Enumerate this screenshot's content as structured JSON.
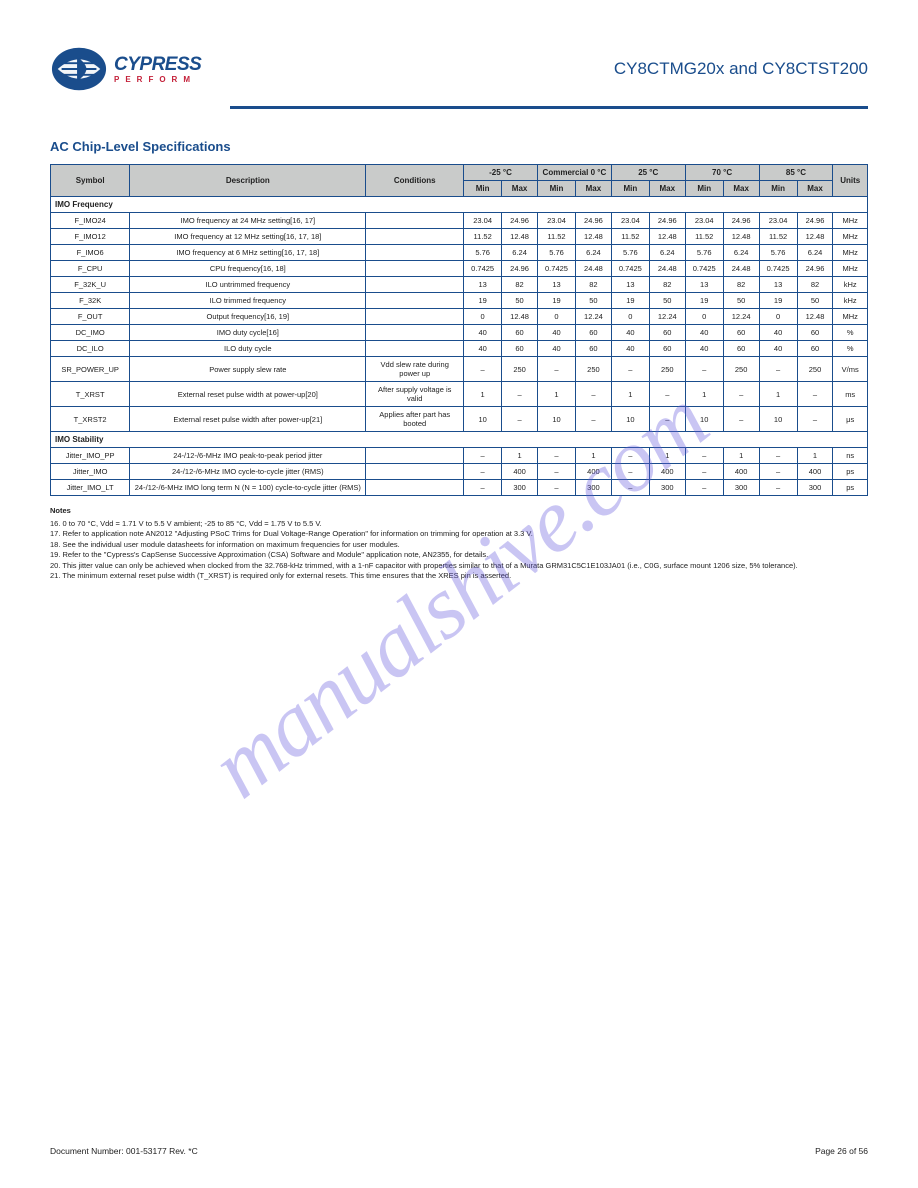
{
  "header": {
    "logo_main": "CYPRESS",
    "logo_sub": "PERFORM",
    "doc_title": "CY8CTMG20x and CY8CTST200"
  },
  "section_title": "AC Chip-Level Specifications",
  "table": {
    "headers": {
      "symbol": "Symbol",
      "description": "Description",
      "conditions": "Conditions",
      "groups": [
        "-25 °C",
        "Commercial 0 °C",
        "25 °C",
        "70 °C",
        "85 °C"
      ],
      "sub": [
        "Min",
        "Max"
      ],
      "units": "Units"
    },
    "section_a_label": "IMO Frequency",
    "rows_a": [
      {
        "sym": "F_IMO24",
        "desc": "IMO frequency at 24 MHz setting[16, 17]",
        "cond": "",
        "vals": [
          "23.04",
          "24.96",
          "23.04",
          "24.96",
          "23.04",
          "24.96",
          "23.04",
          "24.96",
          "23.04",
          "24.96"
        ],
        "unit": "MHz"
      },
      {
        "sym": "F_IMO12",
        "desc": "IMO frequency at 12 MHz setting[16, 17, 18]",
        "cond": "",
        "vals": [
          "11.52",
          "12.48",
          "11.52",
          "12.48",
          "11.52",
          "12.48",
          "11.52",
          "12.48",
          "11.52",
          "12.48"
        ],
        "unit": "MHz"
      },
      {
        "sym": "F_IMO6",
        "desc": "IMO frequency at 6 MHz setting[16, 17, 18]",
        "cond": "",
        "vals": [
          "5.76",
          "6.24",
          "5.76",
          "6.24",
          "5.76",
          "6.24",
          "5.76",
          "6.24",
          "5.76",
          "6.24"
        ],
        "unit": "MHz"
      },
      {
        "sym": "F_CPU",
        "desc": "CPU frequency[16, 18]",
        "cond": "",
        "vals": [
          "0.7425",
          "24.96",
          "0.7425",
          "24.48",
          "0.7425",
          "24.48",
          "0.7425",
          "24.48",
          "0.7425",
          "24.96"
        ],
        "unit": "MHz"
      },
      {
        "sym": "F_32K_U",
        "desc": "ILO untrimmed frequency",
        "cond": "",
        "vals": [
          "13",
          "82",
          "13",
          "82",
          "13",
          "82",
          "13",
          "82",
          "13",
          "82"
        ],
        "unit": "kHz"
      },
      {
        "sym": "F_32K",
        "desc": "ILO trimmed frequency",
        "cond": "",
        "vals": [
          "19",
          "50",
          "19",
          "50",
          "19",
          "50",
          "19",
          "50",
          "19",
          "50"
        ],
        "unit": "kHz"
      },
      {
        "sym": "F_OUT",
        "desc": "Output frequency[16, 19]",
        "cond": "",
        "vals": [
          "0",
          "12.48",
          "0",
          "12.24",
          "0",
          "12.24",
          "0",
          "12.24",
          "0",
          "12.48"
        ],
        "unit": "MHz"
      },
      {
        "sym": "DC_IMO",
        "desc": "IMO duty cycle[16]",
        "cond": "",
        "vals": [
          "40",
          "60",
          "40",
          "60",
          "40",
          "60",
          "40",
          "60",
          "40",
          "60"
        ],
        "unit": "%"
      },
      {
        "sym": "DC_ILO",
        "desc": "ILO duty cycle",
        "cond": "",
        "vals": [
          "40",
          "60",
          "40",
          "60",
          "40",
          "60",
          "40",
          "60",
          "40",
          "60"
        ],
        "unit": "%"
      },
      {
        "sym": "SR_POWER_UP",
        "desc": "Power supply slew rate",
        "cond": "Vdd slew rate during power up",
        "vals": [
          "–",
          "250",
          "–",
          "250",
          "–",
          "250",
          "–",
          "250",
          "–",
          "250"
        ],
        "unit": "V/ms"
      },
      {
        "sym": "T_XRST",
        "desc": "External reset pulse width at power-up[20]",
        "cond": "After supply voltage is valid",
        "vals": [
          "1",
          "–",
          "1",
          "–",
          "1",
          "–",
          "1",
          "–",
          "1",
          "–"
        ],
        "unit": "ms"
      },
      {
        "sym": "T_XRST2",
        "desc": "External reset pulse width after power-up[21]",
        "cond": "Applies after part has booted",
        "vals": [
          "10",
          "–",
          "10",
          "–",
          "10",
          "–",
          "10",
          "–",
          "10",
          "–"
        ],
        "unit": "μs"
      }
    ],
    "section_b_label": "IMO Stability",
    "rows_b": [
      {
        "sym": "Jitter_IMO_PP",
        "desc": "24-/12-/6-MHz IMO peak-to-peak period jitter",
        "cond": "",
        "vals": [
          "–",
          "1",
          "–",
          "1",
          "–",
          "1",
          "–",
          "1",
          "–",
          "1"
        ],
        "unit": "ns"
      },
      {
        "sym": "Jitter_IMO",
        "desc": "24-/12-/6-MHz IMO cycle-to-cycle jitter (RMS)",
        "cond": "",
        "vals": [
          "–",
          "400",
          "–",
          "400",
          "–",
          "400",
          "–",
          "400",
          "–",
          "400"
        ],
        "unit": "ps"
      },
      {
        "sym": "Jitter_IMO_LT",
        "desc": "24-/12-/6-MHz IMO long term N (N = 100) cycle-to-cycle jitter (RMS)",
        "cond": "",
        "vals": [
          "–",
          "300",
          "–",
          "300",
          "–",
          "300",
          "–",
          "300",
          "–",
          "300"
        ],
        "unit": "ps"
      }
    ]
  },
  "notes": {
    "title": "Notes",
    "items": [
      "16. 0 to 70 °C, Vdd = 1.71 V to 5.5 V ambient; -25 to 85 °C, Vdd = 1.75 V to 5.5 V.",
      "17. Refer to application note AN2012 \"Adjusting PSoC Trims for Dual Voltage-Range Operation\" for information on trimming for operation at 3.3 V.",
      "18. See the individual user module datasheets for information on maximum frequencies for user modules.",
      "19. Refer to the \"Cypress's CapSense Successive Approximation (CSA) Software and Module\" application note, AN2355, for details.",
      "20. This jitter value can only be achieved when clocked from the 32.768-kHz trimmed, with a 1-nF capacitor with properties similar to that of a Murata GRM31C5C1E103JA01 (i.e., C0G, surface mount 1206 size, 5% tolerance).",
      "21. The minimum external reset pulse width (T_XRST) is required only for external resets. This time ensures that the XRES pin is asserted."
    ]
  },
  "watermark_text": "manualshive.com",
  "footer": {
    "left": "Document Number: 001-53177 Rev. *C",
    "right": "Page 26 of 56"
  }
}
